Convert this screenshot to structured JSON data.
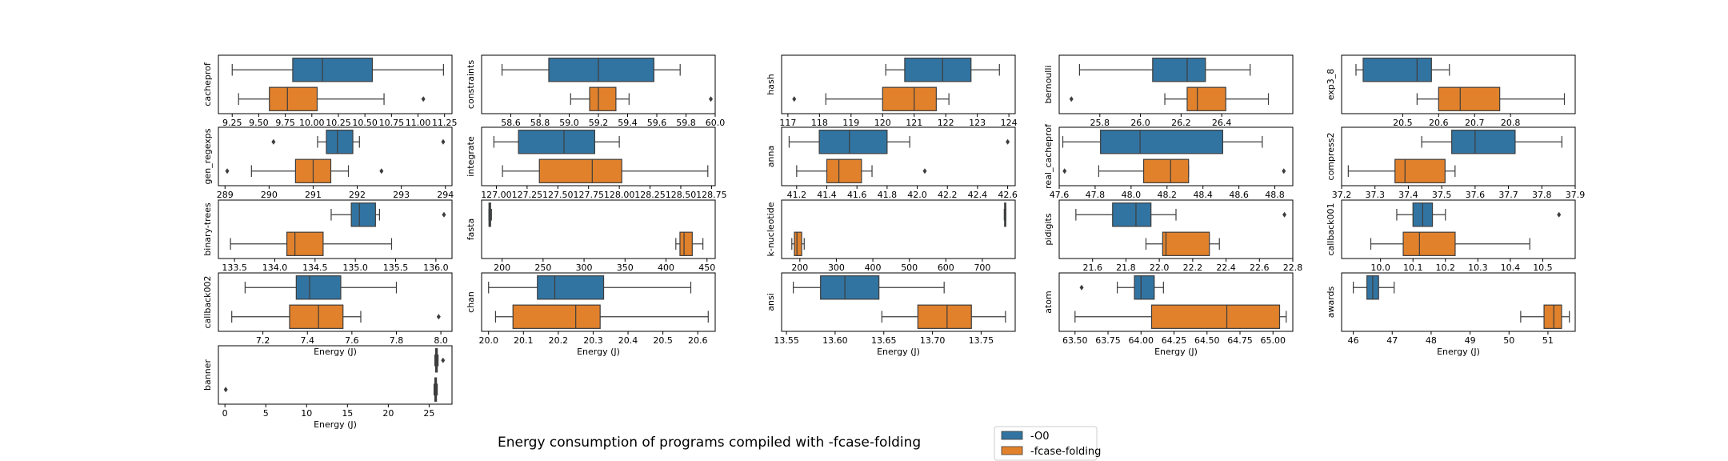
{
  "figure": {
    "title": "Energy consumption of programs compiled with -fcase-folding",
    "xlabel": "Energy (J)",
    "legend": [
      {
        "label": "-O0",
        "color": "#3274a1"
      },
      {
        "label": "-fcase-folding",
        "color": "#e1812c"
      }
    ]
  },
  "chart_data": [
    {
      "type": "box",
      "ylabel": "cacheprof",
      "xlim": [
        9.12,
        11.32
      ],
      "xticks": [
        "9.25",
        "9.50",
        "9.75",
        "10.00",
        "10.25",
        "10.50",
        "10.75",
        "11.00",
        "11.25"
      ],
      "xticks_values": [
        9.25,
        9.5,
        9.75,
        10.0,
        10.25,
        10.5,
        10.75,
        11.0,
        11.25
      ],
      "series": [
        {
          "name": "-O0",
          "whislo": 9.25,
          "q1": 9.82,
          "med": 10.1,
          "q3": 10.57,
          "whishi": 11.24,
          "fliers": []
        },
        {
          "name": "-fcase-folding",
          "whislo": 9.31,
          "q1": 9.6,
          "med": 9.77,
          "q3": 10.05,
          "whishi": 10.68,
          "fliers": [
            11.05
          ]
        }
      ]
    },
    {
      "type": "box",
      "ylabel": "constraints",
      "xlim": [
        58.4,
        60.0
      ],
      "xticks": [
        "58.6",
        "58.8",
        "59.0",
        "59.2",
        "59.4",
        "59.6",
        "59.8",
        "60.0"
      ],
      "xticks_values": [
        58.6,
        58.8,
        59.0,
        59.2,
        59.4,
        59.6,
        59.8,
        60.0
      ],
      "series": [
        {
          "name": "-O0",
          "whislo": 58.54,
          "q1": 58.86,
          "med": 59.2,
          "q3": 59.58,
          "whishi": 59.76,
          "fliers": []
        },
        {
          "name": "-fcase-folding",
          "whislo": 59.01,
          "q1": 59.14,
          "med": 59.2,
          "q3": 59.32,
          "whishi": 59.41,
          "fliers": [
            59.97
          ]
        }
      ]
    },
    {
      "type": "box",
      "ylabel": "hash",
      "xlim": [
        116.8,
        124.2
      ],
      "xticks": [
        "117",
        "118",
        "119",
        "120",
        "121",
        "122",
        "123",
        "124"
      ],
      "xticks_values": [
        117,
        118,
        119,
        120,
        121,
        122,
        123,
        124
      ],
      "series": [
        {
          "name": "-O0",
          "whislo": 120.1,
          "q1": 120.7,
          "med": 121.9,
          "q3": 122.8,
          "whishi": 123.7,
          "fliers": []
        },
        {
          "name": "-fcase-folding",
          "whislo": 118.2,
          "q1": 120.0,
          "med": 121.0,
          "q3": 121.7,
          "whishi": 122.1,
          "fliers": [
            117.2
          ]
        }
      ]
    },
    {
      "type": "box",
      "ylabel": "bernoulli",
      "xlim": [
        25.6,
        26.75
      ],
      "xticks": [
        "25.8",
        "26.0",
        "26.2",
        "26.4"
      ],
      "xticks_values": [
        25.8,
        26.0,
        26.2,
        26.4
      ],
      "series": [
        {
          "name": "-O0",
          "whislo": 25.7,
          "q1": 26.06,
          "med": 26.23,
          "q3": 26.32,
          "whishi": 26.54,
          "fliers": []
        },
        {
          "name": "-fcase-folding",
          "whislo": 26.12,
          "q1": 26.23,
          "med": 26.28,
          "q3": 26.42,
          "whishi": 26.63,
          "fliers": [
            25.66
          ]
        }
      ]
    },
    {
      "type": "box",
      "ylabel": "exp3_8",
      "xlim": [
        20.33,
        20.98
      ],
      "xticks": [
        "20.5",
        "20.6",
        "20.7",
        "20.8"
      ],
      "xticks_values": [
        20.5,
        20.6,
        20.7,
        20.8
      ],
      "series": [
        {
          "name": "-O0",
          "whislo": 20.37,
          "q1": 20.39,
          "med": 20.54,
          "q3": 20.58,
          "whishi": 20.63,
          "fliers": []
        },
        {
          "name": "-fcase-folding",
          "whislo": 20.54,
          "q1": 20.6,
          "med": 20.66,
          "q3": 20.77,
          "whishi": 20.95,
          "fliers": []
        }
      ]
    },
    {
      "type": "box",
      "ylabel": "gen_regexps",
      "xlim": [
        288.85,
        294.15
      ],
      "xticks": [
        "289",
        "290",
        "291",
        "292",
        "293",
        "294"
      ],
      "xticks_values": [
        289,
        290,
        291,
        292,
        293,
        294
      ],
      "series": [
        {
          "name": "-O0",
          "whislo": 291.1,
          "q1": 291.3,
          "med": 291.55,
          "q3": 291.9,
          "whishi": 292.05,
          "fliers": [
            290.1,
            293.95
          ]
        },
        {
          "name": "-fcase-folding",
          "whislo": 289.6,
          "q1": 290.6,
          "med": 291.0,
          "q3": 291.4,
          "whishi": 291.8,
          "fliers": [
            289.05,
            292.55
          ]
        }
      ]
    },
    {
      "type": "box",
      "ylabel": "integrate",
      "xlim": [
        126.88,
        128.78
      ],
      "xticks": [
        "127.00",
        "127.25",
        "127.50",
        "127.75",
        "128.00",
        "128.25",
        "128.50",
        "128.75"
      ],
      "xticks_values": [
        127.0,
        127.25,
        127.5,
        127.75,
        128.0,
        128.25,
        128.5,
        128.75
      ],
      "series": [
        {
          "name": "-O0",
          "whislo": 126.98,
          "q1": 127.18,
          "med": 127.55,
          "q3": 127.8,
          "whishi": 128.0,
          "fliers": []
        },
        {
          "name": "-fcase-folding",
          "whislo": 127.05,
          "q1": 127.35,
          "med": 127.78,
          "q3": 128.02,
          "whishi": 128.72,
          "fliers": []
        }
      ]
    },
    {
      "type": "box",
      "ylabel": "anna",
      "xlim": [
        41.1,
        42.65
      ],
      "xticks": [
        "41.2",
        "41.4",
        "41.6",
        "41.8",
        "42.0",
        "42.2",
        "42.4",
        "42.6"
      ],
      "xticks_values": [
        41.2,
        41.4,
        41.6,
        41.8,
        42.0,
        42.2,
        42.4,
        42.6
      ],
      "series": [
        {
          "name": "-O0",
          "whislo": 41.15,
          "q1": 41.35,
          "med": 41.55,
          "q3": 41.8,
          "whishi": 41.95,
          "fliers": [
            42.6
          ]
        },
        {
          "name": "-fcase-folding",
          "whislo": 41.2,
          "q1": 41.4,
          "med": 41.48,
          "q3": 41.63,
          "whishi": 41.7,
          "fliers": [
            42.05
          ]
        }
      ]
    },
    {
      "type": "box",
      "ylabel": "real_cacheprof",
      "xlim": [
        47.6,
        48.9
      ],
      "xticks": [
        "47.6",
        "47.8",
        "48.0",
        "48.2",
        "48.4",
        "48.6",
        "48.8"
      ],
      "xticks_values": [
        47.6,
        47.8,
        48.0,
        48.2,
        48.4,
        48.6,
        48.8
      ],
      "series": [
        {
          "name": "-O0",
          "whislo": 47.62,
          "q1": 47.83,
          "med": 48.05,
          "q3": 48.51,
          "whishi": 48.73,
          "fliers": []
        },
        {
          "name": "-fcase-folding",
          "whislo": 47.82,
          "q1": 48.07,
          "med": 48.22,
          "q3": 48.32,
          "whishi": 48.32,
          "fliers": [
            47.63,
            48.85
          ]
        }
      ]
    },
    {
      "type": "box",
      "ylabel": "compress2",
      "xlim": [
        37.2,
        37.9
      ],
      "xticks": [
        "37.2",
        "37.3",
        "37.4",
        "37.5",
        "37.6",
        "37.7",
        "37.8",
        "37.9"
      ],
      "xticks_values": [
        37.2,
        37.3,
        37.4,
        37.5,
        37.6,
        37.7,
        37.8,
        37.9
      ],
      "series": [
        {
          "name": "-O0",
          "whislo": 37.44,
          "q1": 37.53,
          "med": 37.6,
          "q3": 37.72,
          "whishi": 37.86,
          "fliers": []
        },
        {
          "name": "-fcase-folding",
          "whislo": 37.22,
          "q1": 37.36,
          "med": 37.39,
          "q3": 37.51,
          "whishi": 37.54,
          "fliers": []
        }
      ]
    },
    {
      "type": "box",
      "ylabel": "binary-trees",
      "xlim": [
        133.3,
        136.2
      ],
      "xticks": [
        "133.5",
        "134.0",
        "134.5",
        "135.0",
        "135.5",
        "136.0"
      ],
      "xticks_values": [
        133.5,
        134.0,
        134.5,
        135.0,
        135.5,
        136.0
      ],
      "series": [
        {
          "name": "-O0",
          "whislo": 134.7,
          "q1": 134.95,
          "med": 135.05,
          "q3": 135.25,
          "whishi": 135.3,
          "fliers": [
            136.1
          ]
        },
        {
          "name": "-fcase-folding",
          "whislo": 133.45,
          "q1": 134.15,
          "med": 134.25,
          "q3": 134.6,
          "whishi": 135.45,
          "fliers": []
        }
      ]
    },
    {
      "type": "box",
      "ylabel": "fasta",
      "xlim": [
        175,
        460
      ],
      "xticks": [
        "200",
        "250",
        "300",
        "350",
        "400",
        "450"
      ],
      "xticks_values": [
        200,
        250,
        300,
        350,
        400,
        450
      ],
      "series": [
        {
          "name": "-O0",
          "whislo": 184,
          "q1": 184,
          "med": 185,
          "q3": 186,
          "whishi": 187,
          "fliers": []
        },
        {
          "name": "-fcase-folding",
          "whislo": 412,
          "q1": 417,
          "med": 422,
          "q3": 432,
          "whishi": 445,
          "fliers": []
        }
      ]
    },
    {
      "type": "box",
      "ylabel": "k-nucleotide",
      "xlim": [
        150,
        790
      ],
      "xticks": [
        "200",
        "300",
        "400",
        "500",
        "600",
        "700"
      ],
      "xticks_values": [
        200,
        300,
        400,
        500,
        600,
        700
      ],
      "series": [
        {
          "name": "-O0",
          "whislo": 760,
          "q1": 761,
          "med": 762,
          "q3": 763,
          "whishi": 764,
          "fliers": []
        },
        {
          "name": "-fcase-folding",
          "whislo": 178,
          "q1": 185,
          "med": 192,
          "q3": 205,
          "whishi": 212,
          "fliers": []
        }
      ]
    },
    {
      "type": "box",
      "ylabel": "pidigits",
      "xlim": [
        21.4,
        22.8
      ],
      "xticks": [
        "21.6",
        "21.8",
        "22.0",
        "22.2",
        "22.4",
        "22.6",
        "22.8"
      ],
      "xticks_values": [
        21.6,
        21.8,
        22.0,
        22.2,
        22.4,
        22.6,
        22.8
      ],
      "series": [
        {
          "name": "-O0",
          "whislo": 21.5,
          "q1": 21.72,
          "med": 21.86,
          "q3": 21.95,
          "whishi": 22.1,
          "fliers": [
            22.75
          ]
        },
        {
          "name": "-fcase-folding",
          "whislo": 21.92,
          "q1": 22.02,
          "med": 22.04,
          "q3": 22.3,
          "whishi": 22.36,
          "fliers": []
        }
      ]
    },
    {
      "type": "box",
      "ylabel": "callback001",
      "xlim": [
        9.88,
        10.6
      ],
      "xticks": [
        "10.0",
        "10.1",
        "10.2",
        "10.3",
        "10.4",
        "10.5"
      ],
      "xticks_values": [
        10.0,
        10.1,
        10.2,
        10.3,
        10.4,
        10.5
      ],
      "series": [
        {
          "name": "-O0",
          "whislo": 10.05,
          "q1": 10.1,
          "med": 10.13,
          "q3": 10.16,
          "whishi": 10.2,
          "fliers": [
            10.55
          ]
        },
        {
          "name": "-fcase-folding",
          "whislo": 9.97,
          "q1": 10.07,
          "med": 10.12,
          "q3": 10.23,
          "whishi": 10.46,
          "fliers": []
        }
      ]
    },
    {
      "type": "box",
      "ylabel": "callback002",
      "xlim": [
        7.0,
        8.05
      ],
      "xticks": [
        "7.2",
        "7.4",
        "7.6",
        "7.8",
        "8.0"
      ],
      "xticks_values": [
        7.2,
        7.4,
        7.6,
        7.8,
        8.0
      ],
      "series": [
        {
          "name": "-O0",
          "whislo": 7.12,
          "q1": 7.35,
          "med": 7.41,
          "q3": 7.55,
          "whishi": 7.8,
          "fliers": []
        },
        {
          "name": "-fcase-folding",
          "whislo": 7.06,
          "q1": 7.32,
          "med": 7.45,
          "q3": 7.56,
          "whishi": 7.64,
          "fliers": [
            7.99
          ]
        }
      ]
    },
    {
      "type": "box",
      "ylabel": "chan",
      "xlim": [
        19.98,
        20.65
      ],
      "xticks": [
        "20.0",
        "20.1",
        "20.2",
        "20.3",
        "20.4",
        "20.5",
        "20.6"
      ],
      "xticks_values": [
        20.0,
        20.1,
        20.2,
        20.3,
        20.4,
        20.5,
        20.6
      ],
      "series": [
        {
          "name": "-O0",
          "whislo": 20.0,
          "q1": 20.14,
          "med": 20.19,
          "q3": 20.33,
          "whishi": 20.58,
          "fliers": []
        },
        {
          "name": "-fcase-folding",
          "whislo": 20.02,
          "q1": 20.07,
          "med": 20.25,
          "q3": 20.32,
          "whishi": 20.63,
          "fliers": []
        }
      ]
    },
    {
      "type": "box",
      "ylabel": "ansi",
      "xlim": [
        13.545,
        13.785
      ],
      "xticks": [
        "13.55",
        "13.60",
        "13.65",
        "13.70",
        "13.75"
      ],
      "xticks_values": [
        13.55,
        13.6,
        13.65,
        13.7,
        13.75
      ],
      "series": [
        {
          "name": "-O0",
          "whislo": 13.557,
          "q1": 13.585,
          "med": 13.61,
          "q3": 13.645,
          "whishi": 13.712,
          "fliers": []
        },
        {
          "name": "-fcase-folding",
          "whislo": 13.648,
          "q1": 13.685,
          "med": 13.715,
          "q3": 13.74,
          "whishi": 13.775,
          "fliers": []
        }
      ]
    },
    {
      "type": "box",
      "ylabel": "atom",
      "xlim": [
        63.38,
        65.15
      ],
      "xticks": [
        "63.50",
        "63.75",
        "64.00",
        "64.25",
        "64.50",
        "64.75",
        "65.00"
      ],
      "xticks_values": [
        63.5,
        63.75,
        64.0,
        64.25,
        64.5,
        64.75,
        65.0
      ],
      "series": [
        {
          "name": "-O0",
          "whislo": 63.82,
          "q1": 63.95,
          "med": 64.0,
          "q3": 64.1,
          "whishi": 64.17,
          "fliers": [
            63.55
          ]
        },
        {
          "name": "-fcase-folding",
          "whislo": 63.5,
          "q1": 64.08,
          "med": 64.65,
          "q3": 65.05,
          "whishi": 65.1,
          "fliers": []
        }
      ]
    },
    {
      "type": "box",
      "ylabel": "awards",
      "xlim": [
        45.7,
        51.7
      ],
      "xticks": [
        "46",
        "47",
        "48",
        "49",
        "50",
        "51"
      ],
      "xticks_values": [
        46,
        47,
        48,
        49,
        50,
        51
      ],
      "series": [
        {
          "name": "-O0",
          "whislo": 46.0,
          "q1": 46.35,
          "med": 46.5,
          "q3": 46.65,
          "whishi": 47.05,
          "fliers": []
        },
        {
          "name": "-fcase-folding",
          "whislo": 50.3,
          "q1": 50.9,
          "med": 51.15,
          "q3": 51.35,
          "whishi": 51.55,
          "fliers": []
        }
      ]
    },
    {
      "type": "box",
      "ylabel": "banner",
      "xlim": [
        -0.8,
        27.8
      ],
      "xticks": [
        "0",
        "5",
        "10",
        "15",
        "20",
        "25"
      ],
      "xticks_values": [
        0,
        5,
        10,
        15,
        20,
        25
      ],
      "series": [
        {
          "name": "-O0",
          "whislo": 25.7,
          "q1": 25.8,
          "med": 25.9,
          "q3": 26.0,
          "whishi": 26.1,
          "fliers": [
            26.7
          ]
        },
        {
          "name": "-fcase-folding",
          "whislo": 25.6,
          "q1": 25.7,
          "med": 25.8,
          "q3": 25.9,
          "whishi": 26.0,
          "fliers": [
            0.1
          ]
        }
      ]
    }
  ]
}
